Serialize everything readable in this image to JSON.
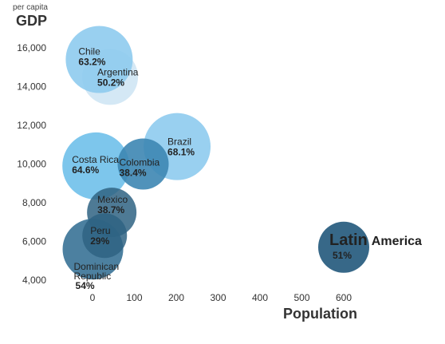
{
  "chart_data": {
    "type": "scatter",
    "ylabel_top": "per capita",
    "ylabel": "GDP",
    "xlabel": "Population",
    "xlim": [
      -50,
      650
    ],
    "ylim": [
      3700,
      17000
    ],
    "xticks": [
      "0",
      "100",
      "200",
      "300",
      "400",
      "500",
      "600"
    ],
    "yticks": [
      "4,000",
      "6,000",
      "8,000",
      "10,000",
      "12,000",
      "14,000",
      "16,000"
    ],
    "points": [
      {
        "name": "Argentina",
        "pct": "50.2%",
        "x": 42,
        "y": 14500,
        "r": 35,
        "color": "#cfe6f4",
        "opacity": 0.9,
        "dark": false
      },
      {
        "name": "Chile",
        "pct": "63.2%",
        "x": 16,
        "y": 15400,
        "r": 42,
        "color": "#8ecbee",
        "opacity": 0.9,
        "dark": false
      },
      {
        "name": "Brazil",
        "pct": "68.1%",
        "x": 202,
        "y": 10900,
        "r": 42,
        "color": "#8ecbee",
        "opacity": 0.9,
        "dark": false
      },
      {
        "name": "Costa Rica",
        "pct": "64.6%",
        "x": 8,
        "y": 9900,
        "r": 42,
        "color": "#6fc0ea",
        "opacity": 0.9,
        "dark": false
      },
      {
        "name": "Colombia",
        "pct": "38.4%",
        "x": 121,
        "y": 10000,
        "r": 32,
        "color": "#3d86b2",
        "opacity": 0.9,
        "dark": false
      },
      {
        "name": "Mexico",
        "pct": "38.7%",
        "x": 46,
        "y": 7500,
        "r": 31,
        "color": "#2f6383",
        "opacity": 0.85,
        "dark": false
      },
      {
        "name": "Dominican Republic",
        "pct": "54%",
        "x": 1,
        "y": 5600,
        "r": 38,
        "color": "#2d6a8f",
        "opacity": 0.85,
        "dark": false
      },
      {
        "name": "Peru",
        "pct": "29%",
        "x": 29,
        "y": 6300,
        "r": 28,
        "color": "#2f6383",
        "opacity": 0.85,
        "dark": false
      },
      {
        "name": "Latin America",
        "pct": "51%",
        "x": 600,
        "y": 5700,
        "r": 32,
        "color": "#2c6082",
        "opacity": 0.95,
        "dark": true
      }
    ]
  }
}
